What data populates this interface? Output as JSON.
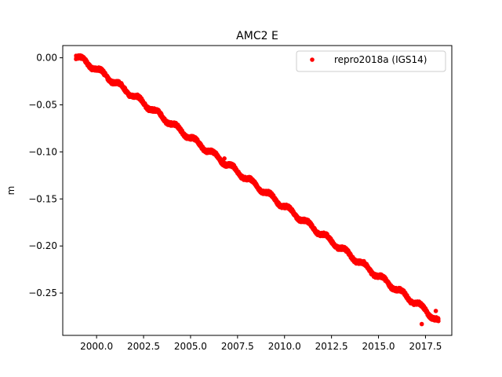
{
  "chart_data": {
    "type": "scatter",
    "title": "AMC2 E",
    "xlabel": "",
    "ylabel": "m",
    "xlim": [
      1998.2,
      2018.9
    ],
    "ylim": [
      -0.295,
      0.013
    ],
    "x_ticks": [
      2000.0,
      2002.5,
      2005.0,
      2007.5,
      2010.0,
      2012.5,
      2015.0,
      2017.5
    ],
    "x_tick_labels": [
      "2000.0",
      "2002.5",
      "2005.0",
      "2007.5",
      "2010.0",
      "2012.5",
      "2015.0",
      "2017.5"
    ],
    "y_ticks": [
      0.0,
      -0.05,
      -0.1,
      -0.15,
      -0.2,
      -0.25
    ],
    "y_tick_labels": [
      "0.00",
      "−0.05",
      "−0.10",
      "−0.15",
      "−0.20",
      "−0.25"
    ],
    "grid": false,
    "legend_position": "upper right",
    "series": [
      {
        "name": "repro2018a (IGS14)",
        "color": "#ff0000",
        "marker": "circle",
        "trend": [
          {
            "x": 1998.9,
            "y": 0.002
          },
          {
            "x": 2000.0,
            "y": -0.012
          },
          {
            "x": 2002.5,
            "y": -0.048
          },
          {
            "x": 2005.0,
            "y": -0.085
          },
          {
            "x": 2007.5,
            "y": -0.121
          },
          {
            "x": 2010.0,
            "y": -0.158
          },
          {
            "x": 2012.5,
            "y": -0.195
          },
          {
            "x": 2015.0,
            "y": -0.232
          },
          {
            "x": 2017.5,
            "y": -0.268
          },
          {
            "x": 2018.2,
            "y": -0.281
          }
        ],
        "outliers": [
          {
            "x": 2006.8,
            "y": -0.107
          },
          {
            "x": 2017.3,
            "y": -0.283
          },
          {
            "x": 2018.05,
            "y": -0.269
          }
        ]
      }
    ]
  }
}
